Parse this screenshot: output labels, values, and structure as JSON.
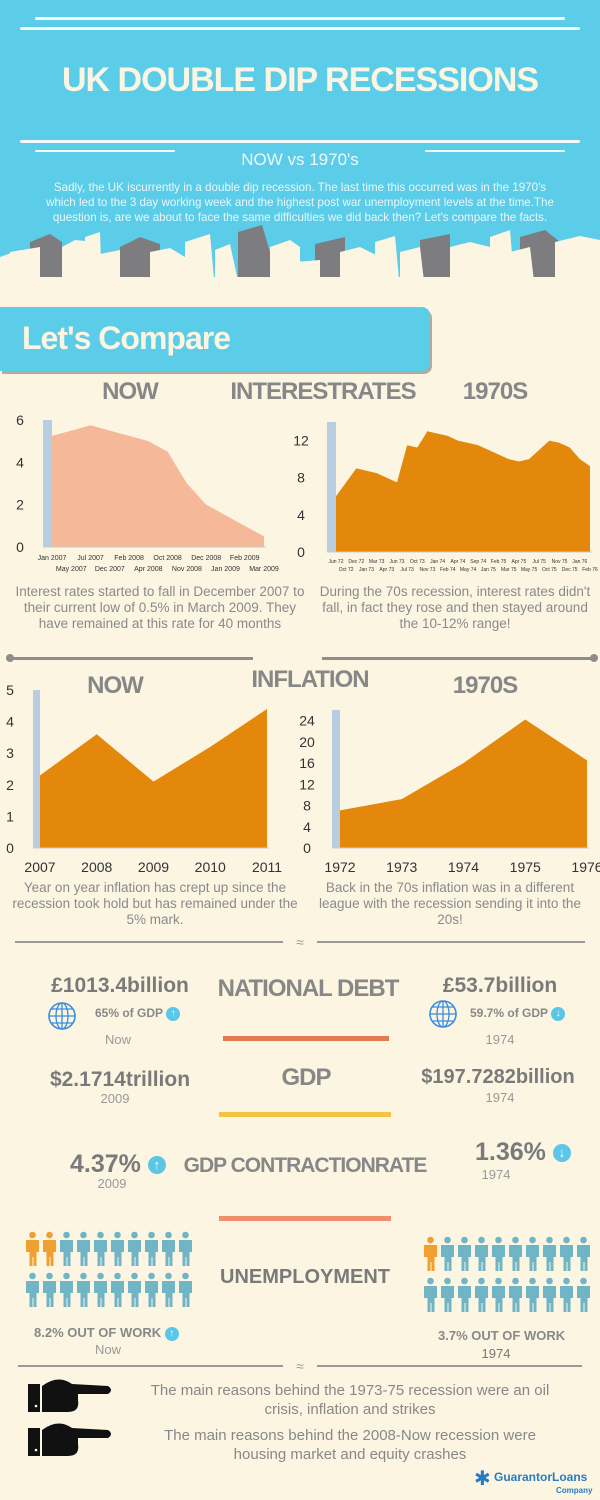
{
  "header": {
    "title": "UK DOUBLE DIP RECESSIONS",
    "subtitle": "NOW vs 1970's",
    "intro": "Sadly, the UK iscurrently in a double dip recession. The last time this occurred was in the 1970's which led to the 3 day working week and the highest post war unemployment levels at the time.The question is, are we about to face the same difficulties we did back then? Let's compare the facts."
  },
  "compare_label": "Let's Compare",
  "interest": {
    "heading": "INTERESTRATES",
    "now_label": "NOW",
    "past_label": "1970S",
    "now_text": "Interest rates started to fall in December 2007 to their current low of 0.5% in March 2009. They have remained at this rate for 40 months",
    "past_text": "During the 70s recession, interest rates didn't fall, in fact they rose and then stayed around the 10-12% range!"
  },
  "inflation": {
    "heading": "INFLATION",
    "now_label": "NOW",
    "past_label": "1970S",
    "now_text": "Year on year inflation has crept up since the recession took hold but has remained under the 5% mark.",
    "past_text": "Back in the 70s inflation was in a different league with the recession sending it into the 20s!"
  },
  "chart_data": [
    {
      "type": "area",
      "color": "#f5b898",
      "ylim": [
        0,
        6
      ],
      "yticks": [
        0,
        2,
        4,
        6
      ],
      "categories": [
        "Jan 2007",
        "May 2007",
        "Jul 2007",
        "Dec 2007",
        "Feb 2008",
        "Apr 2008",
        "Oct 2008",
        "Nov 2008",
        "Dec 2008",
        "Jan 2009",
        "Feb 2009",
        "Mar 2009"
      ],
      "values": [
        5.25,
        5.5,
        5.75,
        5.5,
        5.25,
        5.0,
        4.5,
        3.0,
        2.0,
        1.5,
        1.0,
        0.5
      ]
    },
    {
      "type": "area",
      "color": "#e3880a",
      "ylim": [
        0,
        14
      ],
      "yticks": [
        0,
        4,
        8,
        12
      ],
      "categories": [
        "Jun 72",
        "Oct 72",
        "Dec 72",
        "Jan 73",
        "Mar 73",
        "Apr 73",
        "Jun 73",
        "Jul 73",
        "Oct 73",
        "Nov 73",
        "Jan 74",
        "Feb 74",
        "Apr 74",
        "May 74",
        "Sep 74",
        "Jan 75",
        "Feb 75",
        "Mar 75",
        "Apr 75",
        "May 75",
        "Jul 75",
        "Oct 75",
        "Nov 75",
        "Dec 75",
        "Jan 76",
        "Feb 76"
      ],
      "values": [
        6,
        7.5,
        9,
        8.75,
        8.5,
        8,
        7.5,
        11.5,
        11.25,
        13,
        12.75,
        12.5,
        12,
        11.75,
        11.5,
        11,
        10.5,
        10,
        9.75,
        10,
        11,
        12,
        11.75,
        11.25,
        10,
        9.25
      ]
    },
    {
      "type": "area",
      "color": "#e3880a",
      "ylim": [
        0,
        5
      ],
      "yticks": [
        0,
        1,
        2,
        3,
        4,
        5
      ],
      "categories": [
        "2007",
        "2008",
        "2009",
        "2010",
        "2011"
      ],
      "values": [
        2.3,
        3.6,
        2.1,
        3.2,
        4.4
      ]
    },
    {
      "type": "area",
      "color": "#e3880a",
      "ylim": [
        0,
        26
      ],
      "yticks": [
        0,
        4,
        8,
        12,
        16,
        20,
        24
      ],
      "categories": [
        "1972",
        "1973",
        "1974",
        "1975",
        "1976"
      ],
      "values": [
        7.1,
        9.2,
        16,
        24.2,
        16.5
      ]
    }
  ],
  "stats": {
    "debt": {
      "heading": "NATIONAL DEBT",
      "now_value": "£1013.4billion",
      "now_pct": "65% of GDP",
      "now_trend": "up",
      "now_label": "Now",
      "past_value": "£53.7billion",
      "past_pct": "59.7% of GDP",
      "past_trend": "down",
      "past_label": "1974"
    },
    "gdp": {
      "heading": "GDP",
      "now_value": "$2.1714trillion",
      "now_label": "2009",
      "past_value": "$197.7282billion",
      "past_label": "1974"
    },
    "contraction": {
      "heading": "GDP CONTRACTIONRATE",
      "now_value": "4.37%",
      "now_trend": "up",
      "now_label": "2009",
      "past_value": "1.36%",
      "past_trend": "down",
      "past_label": "1974"
    },
    "unemployment": {
      "heading": "UNEMPLOYMENT",
      "now_text": "8.2%  OUT OF WORK",
      "now_trend": "up",
      "now_label": "Now",
      "now_highlight": 2,
      "past_text": "3.7%  OUT OF WORK",
      "past_label": "1974",
      "past_highlight": 1,
      "people_total": 20
    }
  },
  "reasons": [
    "The main reasons behind the 1973-75 recession were an oil crisis, inflation and strikes",
    "The main reasons behind the 2008-Now recession were housing market and equity crashes"
  ],
  "logo": {
    "name": "GuarantorLoans",
    "sub": "Company"
  },
  "colors": {
    "header": "#5bcde9",
    "background": "#fbf5e2",
    "orange": "#e3880a",
    "peach": "#f5b898",
    "people": "#6fb5c6",
    "people_highlight": "#f0a030"
  }
}
